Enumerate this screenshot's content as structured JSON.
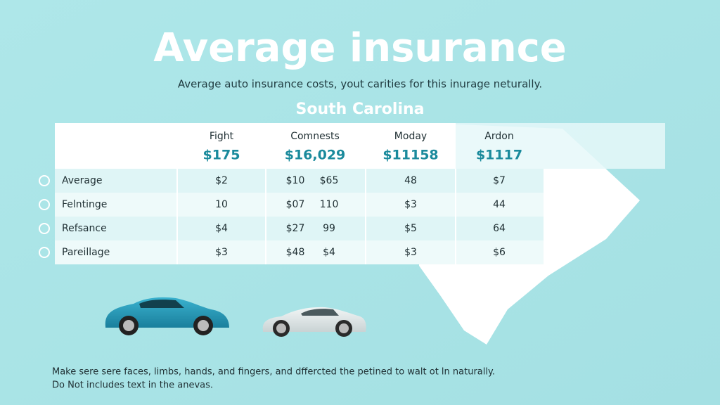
{
  "header": {
    "title": "Average insurance",
    "subtitle": "Average auto insurance costs, yout carities for this inurage neturally.",
    "region": "South Carolina"
  },
  "table": {
    "columns": [
      {
        "name": "Fight",
        "amount": "$175"
      },
      {
        "name": "Comnests",
        "amount": "$16,029"
      },
      {
        "name": "Moday",
        "amount": "$11158"
      },
      {
        "name": "Ardon",
        "amount": "$1117"
      }
    ],
    "rows": [
      [
        "Average",
        "$2",
        "$10",
        "$65",
        "48",
        "$7"
      ],
      [
        "Felntinge",
        "10",
        "$07",
        "110",
        "$3",
        "44"
      ],
      [
        "Refsance",
        "$4",
        "$27",
        "99",
        "$5",
        "64"
      ],
      [
        "Pareillage",
        "$3",
        "$48",
        "$4",
        "$3",
        "$6"
      ]
    ]
  },
  "footer": {
    "lines": [
      "Make sere sere faces, limbs, hands, and fingers, and dffercted the petined to walt ot ln naturally.",
      "Do Not includes text in the anevas."
    ]
  }
}
